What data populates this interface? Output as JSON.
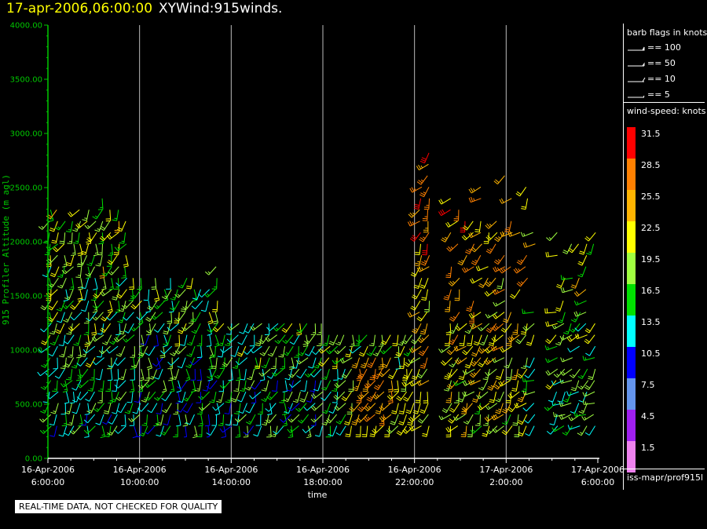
{
  "header": {
    "timestamp": "17-apr-2006,06:00:00",
    "name": "XYWind:915winds."
  },
  "chart_data": {
    "type": "wind-barb time-height scatter",
    "ylabel": "915 Profiler Altitude (m agl)",
    "xlabel": "time",
    "ylim": [
      0,
      4000
    ],
    "yticks": [
      "0.00",
      "500.00",
      "1000.00",
      "1500.00",
      "2000.00",
      "2500.00",
      "3000.00",
      "3500.00",
      "4000.00"
    ],
    "xticks": [
      {
        "date": "16-Apr-2006",
        "time": "6:00:00"
      },
      {
        "date": "16-Apr-2006",
        "time": "10:00:00"
      },
      {
        "date": "16-Apr-2006",
        "time": "14:00:00"
      },
      {
        "date": "16-Apr-2006",
        "time": "18:00:00"
      },
      {
        "date": "16-Apr-2006",
        "time": "22:00:00"
      },
      {
        "date": "17-Apr-2006",
        "time": "2:00:00"
      },
      {
        "date": "17-Apr-2006",
        "time": "6:00:00"
      }
    ],
    "xlim_hours": [
      0,
      24
    ],
    "grid": "vertical lines at each time tick",
    "axis_color": "#00c800",
    "note": "REAL-TIME DATA, NOT CHECKED FOR QUALITY",
    "source": "iss-mapr/prof915l"
  },
  "legend": {
    "barb_title": "barb flags in knots",
    "barbs": [
      {
        "label": "== 100"
      },
      {
        "label": "== 50"
      },
      {
        "label": "== 10"
      },
      {
        "label": "== 5"
      }
    ],
    "speed_title": "wind-speed: knots",
    "speeds": [
      {
        "label": "31.5",
        "color": "#ff0000"
      },
      {
        "label": "28.5",
        "color": "#ff8000"
      },
      {
        "label": "25.5",
        "color": "#ffb400"
      },
      {
        "label": "22.5",
        "color": "#ffff00"
      },
      {
        "label": "19.5",
        "color": "#a0ff40"
      },
      {
        "label": "16.5",
        "color": "#00e000"
      },
      {
        "label": "13.5",
        "color": "#00ffff"
      },
      {
        "label": "10.5",
        "color": "#0000ff"
      },
      {
        "label": "7.5",
        "color": "#6495ed"
      },
      {
        "label": "4.5",
        "color": "#a020f0"
      },
      {
        "label": "1.5",
        "color": "#ee82ee"
      }
    ]
  }
}
